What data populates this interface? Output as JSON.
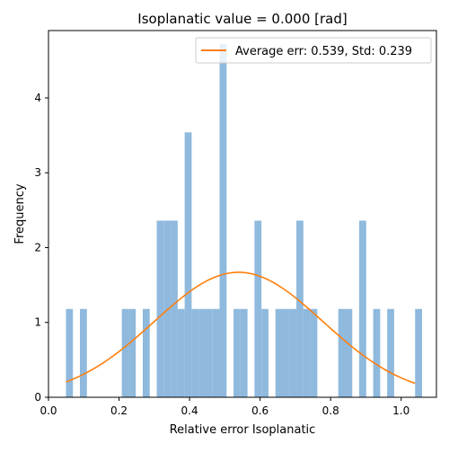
{
  "chart_data": {
    "type": "bar",
    "title": "Isoplanatic value = 0.000 [rad]",
    "xlabel": "Relative error Isoplanatic",
    "ylabel": "Frequency",
    "xlim": [
      0.0,
      1.1
    ],
    "ylim": [
      0,
      4.9
    ],
    "xticks": [
      0.0,
      0.2,
      0.4,
      0.6,
      0.8,
      1.0
    ],
    "xtick_labels": [
      "0.0",
      "0.2",
      "0.4",
      "0.6",
      "0.8",
      "1.0"
    ],
    "yticks": [
      0,
      1,
      2,
      3,
      4
    ],
    "ytick_labels": [
      "0",
      "1",
      "2",
      "3",
      "4"
    ],
    "bin_width": 0.0198,
    "bars_color": "#8fb9dd",
    "histogram": {
      "bin_left": [
        0.0495,
        0.0891,
        0.2079,
        0.2277,
        0.2673,
        0.3069,
        0.3267,
        0.3465,
        0.3663,
        0.3861,
        0.4059,
        0.4257,
        0.4455,
        0.4653,
        0.4851,
        0.5247,
        0.5445,
        0.5841,
        0.6039,
        0.6435,
        0.6633,
        0.6831,
        0.7029,
        0.7227,
        0.7425,
        0.8217,
        0.8415,
        0.8811,
        0.9207,
        0.9603,
        1.0395
      ],
      "values": [
        1.18,
        1.18,
        1.18,
        1.18,
        1.18,
        2.36,
        2.36,
        2.36,
        1.18,
        3.54,
        1.18,
        1.18,
        1.18,
        1.18,
        4.72,
        1.18,
        1.18,
        2.36,
        1.18,
        1.18,
        1.18,
        1.18,
        2.36,
        1.18,
        1.18,
        1.18,
        1.18,
        2.36,
        1.18,
        1.18,
        1.18
      ]
    },
    "curve": {
      "name": "Average err: 0.539, Std: 0.239",
      "color": "#ff7f0e",
      "mean": 0.539,
      "std": 0.239,
      "x_range": [
        0.0495,
        1.0395
      ],
      "peak": 1.67
    },
    "legend_position": "top-right"
  }
}
